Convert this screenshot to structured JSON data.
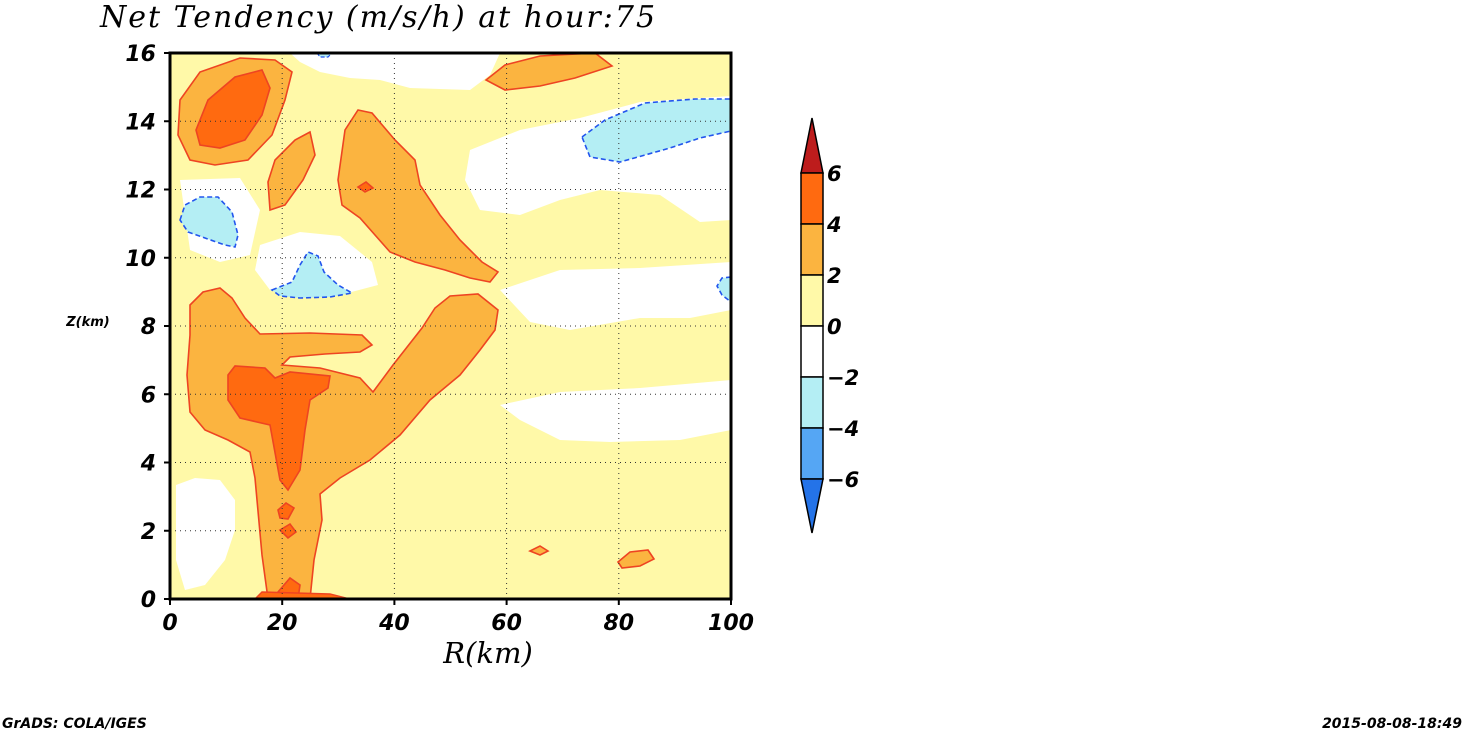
{
  "chart_data": {
    "type": "heatmap",
    "title": "Net Tendency (m/s/h) at hour:75",
    "xlabel": "R(km)",
    "ylabel": "Z(km)",
    "xlim": [
      0,
      100
    ],
    "ylim": [
      0,
      16
    ],
    "x_ticks": [
      "0",
      "20",
      "40",
      "60",
      "80",
      "100"
    ],
    "y_ticks": [
      "0",
      "2",
      "4",
      "6",
      "8",
      "10",
      "12",
      "14",
      "16"
    ],
    "grid": true,
    "colorbar": {
      "placement": "right",
      "levels": [
        "6",
        "4",
        "2",
        "0",
        "-2",
        "-4",
        "-6"
      ],
      "colors": [
        "#bd1c1c",
        "#ff6a10",
        "#fbb440",
        "#fff9a8",
        "#ffffff",
        "#b4eef4",
        "#55a6f4",
        "#2473e8"
      ]
    },
    "regions": [
      {
        "level": "2 to 4",
        "color": "#fbb440",
        "note": "upper-left lobe, R 3-22 km, Z 13-15.8 km"
      },
      {
        "level": "4 to 6",
        "color": "#ff6a10",
        "note": "core R 5-17 km, Z 13.5-15.5 km"
      },
      {
        "level": "2 to 4",
        "color": "#fbb440",
        "note": "main low-level body R 3-58 km, Z 0-9 km"
      },
      {
        "level": "4 to 6",
        "color": "#ff6a10",
        "note": "core R 10-29 km, Z 3.3-6.8 km"
      },
      {
        "level": "2 to 4",
        "color": "#fbb440",
        "note": "mid-upper band R 30-58 km, Z 9.3-14.3 km"
      },
      {
        "level": "-4 to -2",
        "color": "#b4eef4",
        "note": "R 2-12 km, Z 10.3-11.7 km"
      },
      {
        "level": "-4 to -2",
        "color": "#b4eef4",
        "note": "R 19-33 km, Z 8.9-10.1 km"
      },
      {
        "level": "-4 to -2",
        "color": "#b4eef4",
        "note": "R 74-100 km, Z 12.7-14.6 km"
      }
    ]
  },
  "footer": {
    "left": "GrADS: COLA/IGES",
    "right": "2015-08-08-18:49"
  }
}
